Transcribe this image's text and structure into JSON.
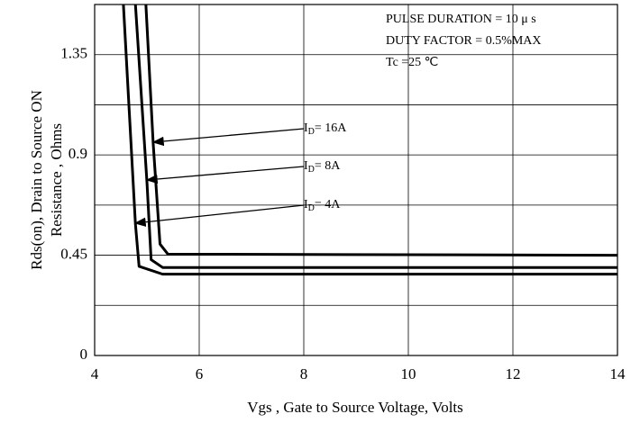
{
  "chart_data": {
    "type": "line",
    "xlabel": "Vgs , Gate to Source Voltage,  Volts",
    "ylabel": [
      "Rds(on), Drain to Source ON",
      "Resistance , Ohms"
    ],
    "annotations": [
      "PULSE    DURATION = 10 μ s",
      "DUTY    FACTOR = 0.5%MAX",
      "Tc =25  ℃"
    ],
    "xlim": [
      4,
      14
    ],
    "xticks": [
      4,
      6,
      8,
      10,
      12,
      14
    ],
    "ylim": [
      0,
      1.575
    ],
    "yticks": [
      0,
      0.45,
      0.9,
      1.35
    ],
    "yminor": [
      0.225,
      0.675,
      1.125
    ],
    "grid": true,
    "color": "#000000",
    "series": [
      {
        "label": [
          "I",
          "D",
          "= 16A"
        ],
        "x": [
          4.98,
          5.12,
          5.25,
          5.4,
          14
        ],
        "values": [
          1.575,
          0.95,
          0.5,
          0.455,
          0.45
        ]
      },
      {
        "label": [
          "I",
          "D",
          "= 8A"
        ],
        "x": [
          4.78,
          5.0,
          5.08,
          5.3,
          7.5,
          14
        ],
        "values": [
          1.575,
          0.78,
          0.43,
          0.395,
          0.395,
          0.395
        ]
      },
      {
        "label": [
          "I",
          "D",
          "= 4A"
        ],
        "x": [
          4.55,
          4.78,
          4.85,
          5.3,
          14
        ],
        "values": [
          1.575,
          0.59,
          0.4,
          0.365,
          0.365
        ]
      }
    ]
  }
}
